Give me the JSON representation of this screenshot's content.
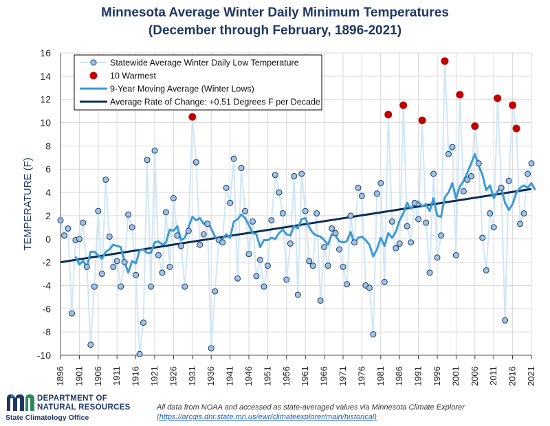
{
  "title": "Minnesota Average Winter Daily Minimum Temperatures",
  "subtitle": "(December through February, 1896-2021)",
  "footer": {
    "org_line1": "DEPARTMENT OF",
    "org_line2": "NATURAL RESOURCES",
    "office": "State Climatology Office",
    "logo_text": "mn",
    "note_line1": "All data from NOAA and accessed as state-averaged values via Minnesota Climate Explorer",
    "note_link": "(https://arcgis.dnr.state.mn.us/ewr/climateexplorer/main/historical)"
  },
  "colors": {
    "title": "#1f3864",
    "points_fill": "#9dc3e6",
    "points_stroke": "#1f3864",
    "thin_line": "#cfe6f8",
    "moving_avg": "#3a9ad9",
    "trend": "#0b2d50",
    "warmest": "#c00000",
    "grid": "#d9d9d9"
  },
  "chart_data": {
    "type": "line",
    "title": "Minnesota Average Winter Daily Minimum Temperatures",
    "subtitle": "(December through February, 1896-2021)",
    "ylabel": "TEMPERATURE (F)",
    "xlabel": "",
    "ylim": [
      -10,
      16
    ],
    "yticks": [
      16,
      14,
      12,
      10,
      8,
      6,
      4,
      2,
      0,
      -2,
      -4,
      -6,
      -8,
      -10
    ],
    "xlim": [
      1896,
      2021
    ],
    "xticks": [
      1896,
      1901,
      1906,
      1911,
      1916,
      1921,
      1926,
      1931,
      1936,
      1941,
      1946,
      1951,
      1956,
      1961,
      1966,
      1971,
      1976,
      1981,
      1986,
      1991,
      1996,
      2001,
      2006,
      2011,
      2016,
      2021
    ],
    "grid": true,
    "legend_position": "top-left",
    "legend": [
      "Statewide Average Winter Daily Low Temperature",
      "10 Warmest",
      "9-Year Moving Average (Winter Lows)",
      "Average Rate of Change: +0.51 Degrees F per Decade"
    ],
    "years_start": 1896,
    "values": [
      1.6,
      0.3,
      0.9,
      -6.4,
      -0.1,
      0.0,
      1.4,
      -2.4,
      -9.1,
      -4.1,
      2.4,
      -3.0,
      5.1,
      0.2,
      -2.4,
      -1.9,
      -4.1,
      -2.0,
      2.1,
      1.0,
      -3.1,
      -9.9,
      -7.2,
      6.8,
      -4.1,
      7.6,
      -1.4,
      -2.9,
      2.3,
      -2.4,
      3.5,
      0.3,
      -0.6,
      -4.1,
      0.7,
      10.5,
      6.6,
      -0.5,
      0.4,
      1.3,
      -9.4,
      -4.5,
      -0.1,
      -0.3,
      4.4,
      3.1,
      6.9,
      -3.4,
      6.1,
      2.4,
      -1.3,
      1.5,
      -3.2,
      -1.8,
      -4.1,
      -2.3,
      1.6,
      5.5,
      4.0,
      2.2,
      -3.5,
      -0.4,
      5.4,
      -4.8,
      5.6,
      2.4,
      -1.9,
      -2.3,
      2.2,
      -5.3,
      -0.7,
      -2.3,
      0.9,
      0.5,
      -0.9,
      -2.4,
      -3.9,
      2.0,
      -0.3,
      4.4,
      3.7,
      -4.0,
      -4.2,
      -8.2,
      3.9,
      4.8,
      -3.7,
      10.7,
      1.5,
      -0.8,
      -0.4,
      11.5,
      1.1,
      -0.3,
      3.1,
      1.7,
      10.2,
      1.4,
      -2.9,
      5.6,
      -1.6,
      0.3,
      15.3,
      7.3,
      7.9,
      -1.4,
      12.4,
      4.1,
      5.1,
      5.4,
      9.7,
      6.5,
      0.1,
      -2.7,
      2.2,
      1.0,
      12.1,
      4.4,
      -7.0,
      5.0,
      11.5,
      9.5,
      1.3,
      2.2,
      5.6,
      6.5
    ],
    "warmest_years": [
      1931,
      1983,
      1987,
      1992,
      1998,
      2002,
      2006,
      2012,
      2016,
      2017
    ],
    "moving_average": [
      null,
      null,
      null,
      null,
      -1.5,
      -2.2,
      -1.9,
      -2.4,
      -1.1,
      -1.1,
      -1.4,
      -1.7,
      -1.1,
      -0.9,
      -0.5,
      -0.6,
      -0.7,
      -2.0,
      -2.9,
      -1.9,
      -2.1,
      -1.0,
      -0.9,
      -1.2,
      -1.2,
      -0.3,
      -0.2,
      -0.5,
      -0.3,
      0.8,
      0.7,
      1.1,
      -0.1,
      0.1,
      1.0,
      1.9,
      1.6,
      1.8,
      1.3,
      1.5,
      0.9,
      0.2,
      -0.2,
      0.0,
      0.4,
      0.1,
      1.5,
      1.7,
      2.1,
      1.8,
      1.2,
      0.5,
      0.4,
      -0.7,
      -0.1,
      -0.1,
      0.1,
      0.0,
      0.5,
      0.8,
      0.4,
      0.3,
      1.1,
      0.9,
      1.7,
      1.8,
      1.0,
      0.5,
      0.3,
      0.2,
      -0.1,
      -0.5,
      0.4,
      0.3,
      -0.2,
      -0.3,
      -0.2,
      0.6,
      -0.4,
      0.1,
      0.2,
      -0.1,
      -0.5,
      -1.5,
      -0.9,
      0.1,
      -0.6,
      0.5,
      0.1,
      0.6,
      1.6,
      2.2,
      3.1,
      2.6,
      3.0,
      3.2,
      2.8,
      3.0,
      2.4,
      3.5,
      2.0,
      1.9,
      3.6,
      4.0,
      4.8,
      3.5,
      4.5,
      5.0,
      5.7,
      6.5,
      7.3,
      6.3,
      5.5,
      4.2,
      4.6,
      3.5,
      4.1,
      4.4,
      3.1,
      2.5,
      3.0,
      4.0,
      4.4,
      4.6,
      4.4,
      4.8,
      4.2
    ],
    "trend": {
      "x": [
        1896,
        2021
      ],
      "y": [
        -2.0,
        4.3
      ],
      "rate_f_per_decade": 0.51
    }
  }
}
